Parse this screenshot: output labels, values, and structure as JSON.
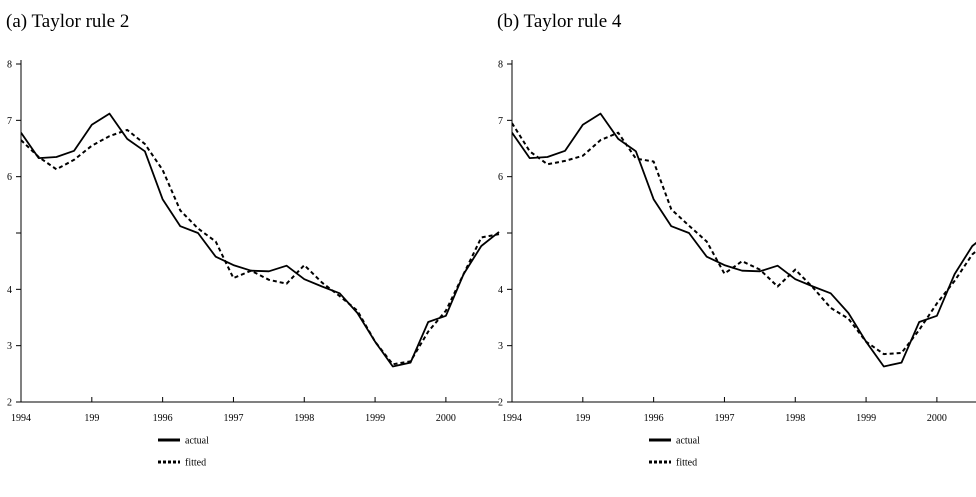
{
  "chart_data": [
    {
      "type": "line",
      "title": "(a) Taylor rule 2",
      "xlabel": "",
      "ylabel": "",
      "x_tick_labels": [
        "1994",
        "199",
        "1996",
        "1997",
        "1998",
        "1999",
        "2000"
      ],
      "y_tick_labels": [
        "2",
        "3",
        "4",
        "",
        "6",
        "7",
        "8"
      ],
      "xlim": [
        1994.0,
        2000.75
      ],
      "ylim": [
        2,
        8
      ],
      "grid": false,
      "legend_position": "bottom-center",
      "x": [
        1994.0,
        1994.25,
        1994.5,
        1994.75,
        1995.0,
        1995.25,
        1995.5,
        1995.75,
        1996.0,
        1996.25,
        1996.5,
        1996.75,
        1997.0,
        1997.25,
        1997.5,
        1997.75,
        1998.0,
        1998.25,
        1998.5,
        1998.75,
        1999.0,
        1999.25,
        1999.5,
        1999.75,
        2000.0,
        2000.25,
        2000.5,
        2000.75
      ],
      "series": [
        {
          "name": "actual",
          "style": "solid",
          "values": [
            6.78,
            6.33,
            6.35,
            6.46,
            6.92,
            7.12,
            6.67,
            6.45,
            5.6,
            5.12,
            5.0,
            4.58,
            4.43,
            4.33,
            4.32,
            4.42,
            4.18,
            4.05,
            3.93,
            3.58,
            3.07,
            2.63,
            2.7,
            3.42,
            3.53,
            4.27,
            4.77,
            5.02
          ]
        },
        {
          "name": "fitted",
          "style": "dotted",
          "values": [
            6.65,
            6.35,
            6.13,
            6.3,
            6.55,
            6.72,
            6.83,
            6.58,
            6.12,
            5.4,
            5.08,
            4.85,
            4.2,
            4.33,
            4.17,
            4.1,
            4.43,
            4.12,
            3.88,
            3.62,
            3.07,
            2.67,
            2.72,
            3.25,
            3.62,
            4.27,
            4.92,
            4.98
          ]
        }
      ]
    },
    {
      "type": "line",
      "title": "(b) Taylor rule 4",
      "xlabel": "",
      "ylabel": "",
      "x_tick_labels": [
        "1994",
        "199",
        "1996",
        "1997",
        "1998",
        "1999",
        "2000"
      ],
      "y_tick_labels": [
        "2",
        "3",
        "4",
        "",
        "6",
        "7",
        "8"
      ],
      "xlim": [
        1994.0,
        2000.75
      ],
      "ylim": [
        2,
        8
      ],
      "grid": false,
      "legend_position": "bottom-center",
      "x": [
        1994.0,
        1994.25,
        1994.5,
        1994.75,
        1995.0,
        1995.25,
        1995.5,
        1995.75,
        1996.0,
        1996.25,
        1996.5,
        1996.75,
        1997.0,
        1997.25,
        1997.5,
        1997.75,
        1998.0,
        1998.25,
        1998.5,
        1998.75,
        1999.0,
        1999.25,
        1999.5,
        1999.75,
        2000.0,
        2000.25,
        2000.5,
        2000.75
      ],
      "series": [
        {
          "name": "actual",
          "style": "solid",
          "values": [
            6.78,
            6.33,
            6.35,
            6.46,
            6.92,
            7.12,
            6.67,
            6.45,
            5.6,
            5.12,
            5.0,
            4.58,
            4.43,
            4.33,
            4.32,
            4.42,
            4.18,
            4.05,
            3.93,
            3.58,
            3.07,
            2.63,
            2.7,
            3.42,
            3.53,
            4.27,
            4.77,
            5.02
          ]
        },
        {
          "name": "fitted",
          "style": "dotted",
          "values": [
            6.95,
            6.45,
            6.22,
            6.28,
            6.37,
            6.65,
            6.78,
            6.32,
            6.27,
            5.42,
            5.13,
            4.85,
            4.28,
            4.5,
            4.35,
            4.05,
            4.35,
            4.03,
            3.67,
            3.48,
            3.07,
            2.85,
            2.87,
            3.28,
            3.75,
            4.15,
            4.62,
            4.88
          ]
        }
      ]
    }
  ]
}
